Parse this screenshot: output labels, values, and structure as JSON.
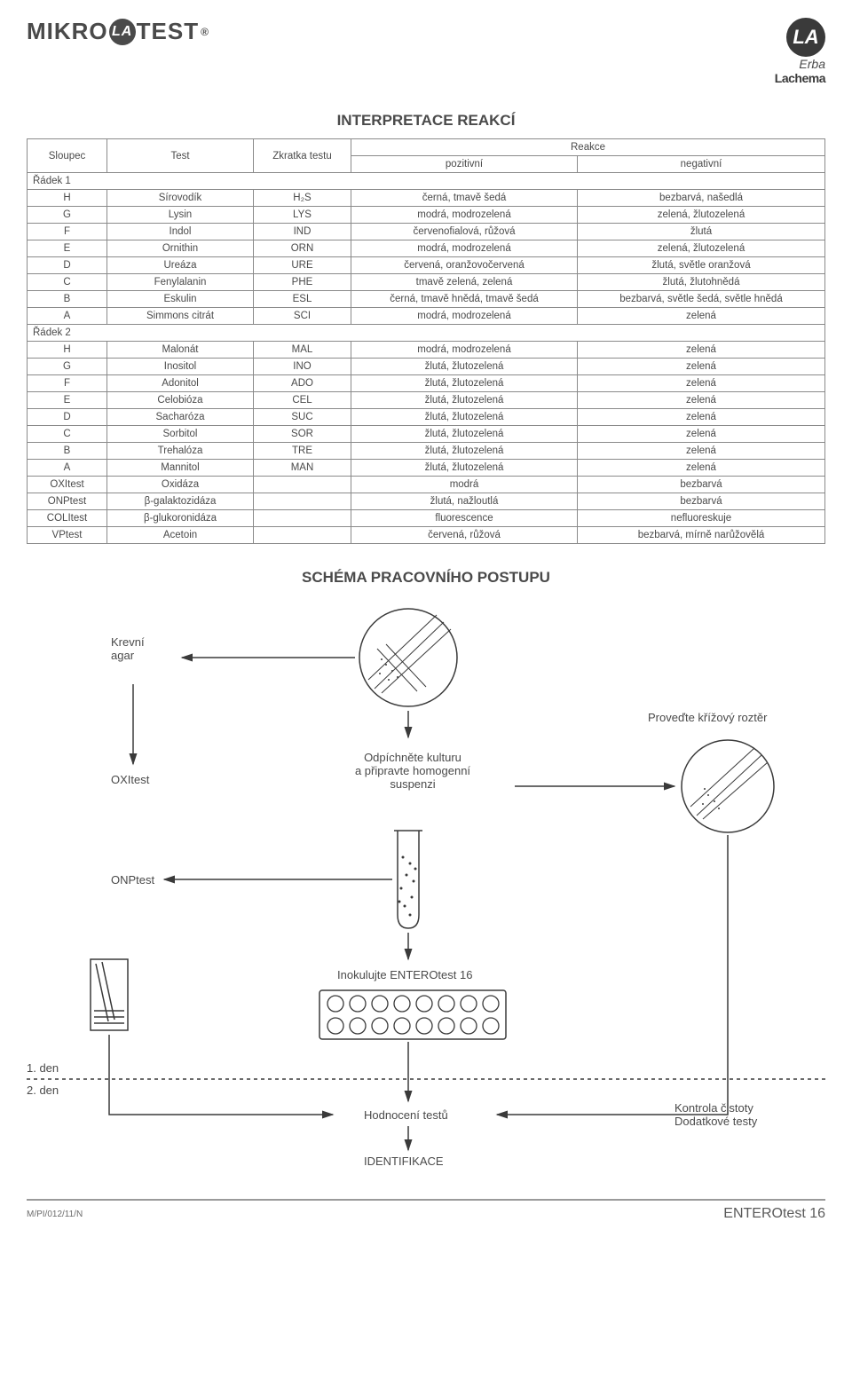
{
  "brand": {
    "left": "MIKRO",
    "left2": "TEST",
    "la": "LA",
    "reg": "®",
    "erba": "Erba",
    "lachema": "Lachema"
  },
  "title_table": "INTERPRETACE REAKCÍ",
  "headers": {
    "sloupec": "Sloupec",
    "test": "Test",
    "zkratka": "Zkratka testu",
    "reakce": "Reakce",
    "pozitivni": "pozitivní",
    "negativni": "negativní"
  },
  "section1": "Řádek 1",
  "section2": "Řádek 2",
  "rows1": [
    {
      "c": "H",
      "t": "Sírovodík",
      "z": "H₂S",
      "p": "černá, tmavě šedá",
      "n": "bezbarvá, našedlá"
    },
    {
      "c": "G",
      "t": "Lysin",
      "z": "LYS",
      "p": "modrá, modrozelená",
      "n": "zelená, žlutozelená"
    },
    {
      "c": "F",
      "t": "Indol",
      "z": "IND",
      "p": "červenofialová, růžová",
      "n": "žlutá"
    },
    {
      "c": "E",
      "t": "Ornithin",
      "z": "ORN",
      "p": "modrá, modrozelená",
      "n": "zelená, žlutozelená"
    },
    {
      "c": "D",
      "t": "Ureáza",
      "z": "URE",
      "p": "červená, oranžovočervená",
      "n": "žlutá, světle oranžová"
    },
    {
      "c": "C",
      "t": "Fenylalanin",
      "z": "PHE",
      "p": "tmavě zelená, zelená",
      "n": "žlutá, žlutohnědá"
    },
    {
      "c": "B",
      "t": "Eskulin",
      "z": "ESL",
      "p": "černá, tmavě hnědá, tmavě šedá",
      "n": "bezbarvá, světle šedá, světle hnědá"
    },
    {
      "c": "A",
      "t": "Simmons citrát",
      "z": "SCI",
      "p": "modrá, modrozelená",
      "n": "zelená"
    }
  ],
  "rows2": [
    {
      "c": "H",
      "t": "Malonát",
      "z": "MAL",
      "p": "modrá, modrozelená",
      "n": "zelená"
    },
    {
      "c": "G",
      "t": "Inositol",
      "z": "INO",
      "p": "žlutá, žlutozelená",
      "n": "zelená"
    },
    {
      "c": "F",
      "t": "Adonitol",
      "z": "ADO",
      "p": "žlutá, žlutozelená",
      "n": "zelená"
    },
    {
      "c": "E",
      "t": "Celobióza",
      "z": "CEL",
      "p": "žlutá, žlutozelená",
      "n": "zelená"
    },
    {
      "c": "D",
      "t": "Sacharóza",
      "z": "SUC",
      "p": "žlutá, žlutozelená",
      "n": "zelená"
    },
    {
      "c": "C",
      "t": "Sorbitol",
      "z": "SOR",
      "p": "žlutá, žlutozelená",
      "n": "zelená"
    },
    {
      "c": "B",
      "t": "Trehalóza",
      "z": "TRE",
      "p": "žlutá, žlutozelená",
      "n": "zelená"
    },
    {
      "c": "A",
      "t": "Mannitol",
      "z": "MAN",
      "p": "žlutá, žlutozelená",
      "n": "zelená"
    }
  ],
  "rows3": [
    {
      "c": "OXItest",
      "t": "Oxidáza",
      "z": "",
      "p": "modrá",
      "n": "bezbarvá"
    },
    {
      "c": "ONPtest",
      "t": "β-galaktozidáza",
      "z": "",
      "p": "žlutá, nažloutlá",
      "n": "bezbarvá"
    },
    {
      "c": "COLItest",
      "t": "β-glukoronidáza",
      "z": "",
      "p": "fluorescence",
      "n": "nefluoreskuje"
    },
    {
      "c": "VPtest",
      "t": "Acetoin",
      "z": "",
      "p": "červená, růžová",
      "n": "bezbarvá, mírně narůžovělá"
    }
  ],
  "title_schema": "SCHÉMA PRACOVNÍHO POSTUPU",
  "schema": {
    "krevni_agar": "Krevní\nagar",
    "oxitest": "OXItest",
    "onptest": "ONPtest",
    "odpichnete": "Odpíchněte kulturu\na připravte homogenní\nsuspenzi",
    "provedte": "Proveďte křížový roztěr",
    "inokulujte": "Inokulujte ENTEROtest 16",
    "den1": "1. den",
    "den2": "2. den",
    "hodnoceni": "Hodnocení testů",
    "identifikace": "IDENTIFIKACE",
    "kontrola": "Kontrola čistoty\nDodatkové testy"
  },
  "footer": {
    "code": "M/PI/012/11/N",
    "product": "ENTEROtest 16"
  },
  "style": {
    "text_color": "#4a4a4a",
    "border_color": "#8a8a8a",
    "stroke": "#3a3a3a",
    "bg": "#ffffff"
  }
}
